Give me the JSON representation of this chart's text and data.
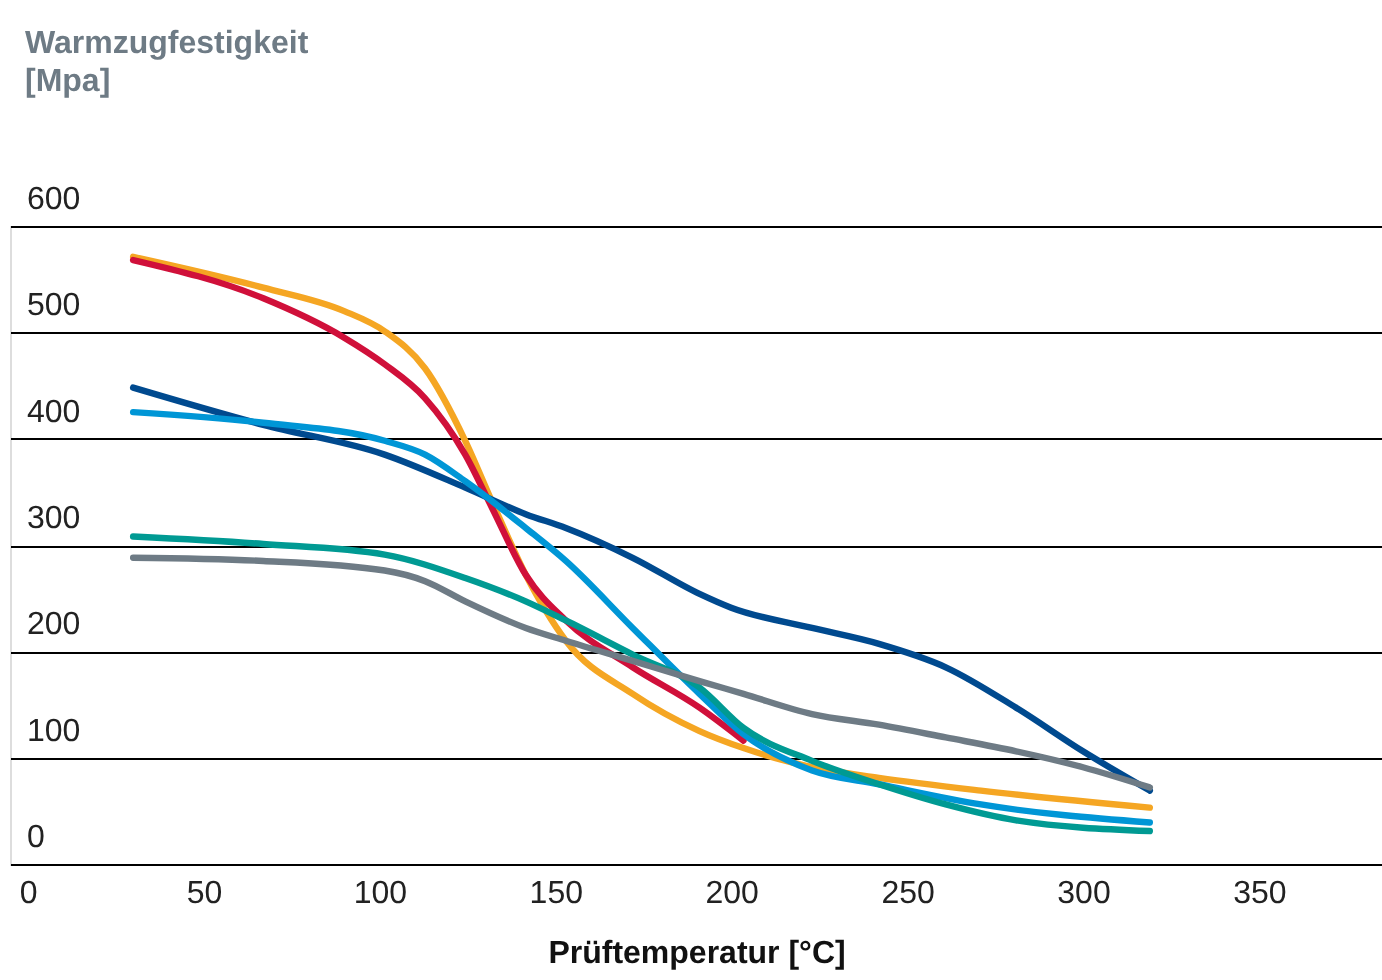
{
  "chart_data": {
    "type": "line",
    "ylabel": "Warmzugfestigkeit\n[Mpa]",
    "xlabel": "Prüftemperatur [°C]",
    "xlim": [
      -5,
      385
    ],
    "xticks": [
      0,
      50,
      100,
      150,
      200,
      250,
      300,
      350
    ],
    "ylim": [
      0,
      600
    ],
    "yticks": [
      0,
      100,
      200,
      300,
      400,
      500,
      600
    ],
    "grid": "y",
    "line_style": "solid",
    "marker": "none",
    "series": [
      {
        "color": "#f5a623",
        "x": [
          30,
          67,
          90,
          101.5,
          113,
          124.4,
          132,
          141.6,
          153,
          172,
          191,
          203.5,
          223,
          242,
          271,
          319
        ],
        "values": [
          571,
          542,
          520,
          501,
          466,
          398,
          341,
          272,
          210,
          160,
          125,
          109,
          91,
          81,
          69,
          53
        ]
      },
      {
        "color": "#d0103a",
        "x": [
          30,
          67,
          90,
          101.5,
          113,
          124.4,
          132,
          141.6,
          153,
          172,
          191,
          203.5
        ],
        "values": [
          568,
          532,
          495,
          470,
          438,
          385,
          335,
          272,
          229,
          185,
          147,
          116
        ]
      },
      {
        "color": "#004a8f",
        "x": [
          30,
          67,
          101.5,
          124.4,
          141.6,
          153,
          172,
          191,
          200,
          223,
          242,
          261,
          281,
          300,
          319
        ],
        "values": [
          448,
          413,
          385,
          354,
          329,
          316,
          288,
          254,
          241,
          222,
          207,
          185,
          147,
          106,
          69
        ]
      },
      {
        "color": "#0096d6",
        "x": [
          30,
          67,
          101.5,
          113,
          124.4,
          141.6,
          153,
          172,
          191,
          203.5,
          223,
          242,
          271,
          319
        ],
        "values": [
          425,
          415,
          398,
          385,
          360,
          316,
          285,
          222,
          160,
          122,
          88,
          75,
          56,
          39
        ]
      },
      {
        "color": "#009a93",
        "x": [
          30,
          67,
          101.5,
          124.4,
          141.6,
          153,
          172,
          191,
          203.5,
          223,
          242,
          261,
          281,
          319
        ],
        "values": [
          308,
          301,
          291,
          269,
          247,
          229,
          197,
          166,
          128,
          97,
          75,
          56,
          41,
          31
        ]
      },
      {
        "color": "#6e7b85",
        "x": [
          30,
          67,
          101.5,
          113,
          124.4,
          141.6,
          153,
          172,
          191,
          203.5,
          223,
          242,
          261,
          281,
          300,
          319
        ],
        "values": [
          288,
          285,
          276,
          266,
          247,
          222,
          210,
          191,
          172,
          160,
          141,
          131,
          119,
          106,
          91,
          72
        ]
      }
    ]
  }
}
